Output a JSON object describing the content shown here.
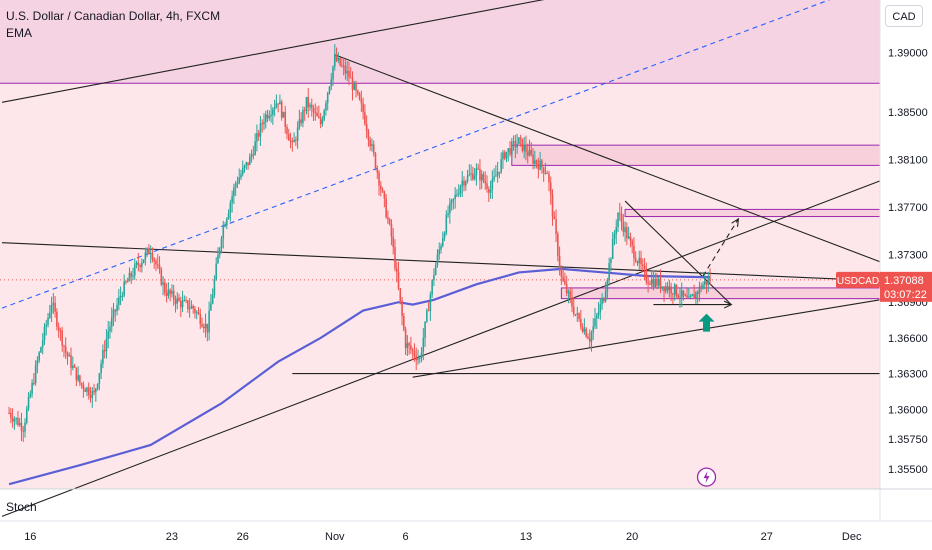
{
  "header": {
    "symbol_title": "U.S. Dollar / Canadian Dollar, 4h, FXCM",
    "indicator": "EMA"
  },
  "currency_button": "CAD",
  "lower_pane_label": "Stoch",
  "colors": {
    "bull": "#26a69a",
    "bear": "#ef5350",
    "ema": "#5b5fd6",
    "zone_fill": "#f3c6d6",
    "zone_border": "#9c27b0",
    "price_tag": "#ef5350",
    "channel_line": "#444444",
    "dashed_midline": "#2962ff",
    "arrow_up": "#089981"
  },
  "price_tag": {
    "symbol": "USDCAD",
    "price": "1.37088",
    "countdown": "03:07:22"
  },
  "chart_data": {
    "type": "candlestick",
    "title": "U.S. Dollar / Canadian Dollar, 4h, FXCM",
    "y_axis": {
      "min": 1.3533,
      "max": 1.3944,
      "ticks": [
        "1.39000",
        "1.38500",
        "1.38100",
        "1.37700",
        "1.37300",
        "1.36900",
        "1.36600",
        "1.36300",
        "1.36000",
        "1.35750",
        "1.35500"
      ],
      "tick_values": [
        1.39,
        1.385,
        1.381,
        1.377,
        1.373,
        1.369,
        1.366,
        1.363,
        1.36,
        1.3575,
        1.355
      ]
    },
    "x_axis": {
      "ticks": [
        "16",
        "23",
        "26",
        "Nov",
        "6",
        "13",
        "20",
        "27",
        "Dec"
      ],
      "tick_index": [
        3,
        23,
        33,
        46,
        56,
        73,
        88,
        107,
        119
      ]
    },
    "candle_width_index": 0.28,
    "path_points": [
      [
        0,
        1.3597
      ],
      [
        2,
        1.3585
      ],
      [
        4,
        1.364
      ],
      [
        6,
        1.369
      ],
      [
        8,
        1.3648
      ],
      [
        10,
        1.3622
      ],
      [
        12,
        1.3612
      ],
      [
        14,
        1.3666
      ],
      [
        16,
        1.37
      ],
      [
        18,
        1.372
      ],
      [
        20,
        1.3735
      ],
      [
        22,
        1.37
      ],
      [
        24,
        1.369
      ],
      [
        26,
        1.3685
      ],
      [
        28,
        1.3668
      ],
      [
        30,
        1.3748
      ],
      [
        32,
        1.379
      ],
      [
        34,
        1.381
      ],
      [
        36,
        1.3845
      ],
      [
        38,
        1.386
      ],
      [
        40,
        1.382
      ],
      [
        42,
        1.3858
      ],
      [
        44,
        1.384
      ],
      [
        46,
        1.3895
      ],
      [
        48,
        1.388
      ],
      [
        50,
        1.385
      ],
      [
        52,
        1.38
      ],
      [
        54,
        1.3745
      ],
      [
        56,
        1.3655
      ],
      [
        58,
        1.3642
      ],
      [
        60,
        1.3715
      ],
      [
        62,
        1.3765
      ],
      [
        64,
        1.3792
      ],
      [
        66,
        1.38
      ],
      [
        68,
        1.3785
      ],
      [
        70,
        1.3815
      ],
      [
        72,
        1.3825
      ],
      [
        74,
        1.381
      ],
      [
        76,
        1.38
      ],
      [
        78,
        1.371
      ],
      [
        80,
        1.368
      ],
      [
        82,
        1.366
      ],
      [
        84,
        1.3695
      ],
      [
        86,
        1.3765
      ],
      [
        88,
        1.3735
      ],
      [
        90,
        1.371
      ],
      [
        92,
        1.3705
      ],
      [
        94,
        1.37
      ],
      [
        96,
        1.369
      ],
      [
        98,
        1.3705
      ],
      [
        99,
        1.3709
      ]
    ],
    "ema": [
      [
        0,
        1.3537
      ],
      [
        10,
        1.3553
      ],
      [
        20,
        1.357
      ],
      [
        30,
        1.3605
      ],
      [
        38,
        1.364
      ],
      [
        44,
        1.366
      ],
      [
        50,
        1.3683
      ],
      [
        55,
        1.369
      ],
      [
        57,
        1.3688
      ],
      [
        60,
        1.3692
      ],
      [
        66,
        1.3705
      ],
      [
        72,
        1.3715
      ],
      [
        78,
        1.3718
      ],
      [
        84,
        1.3715
      ],
      [
        90,
        1.3712
      ],
      [
        99,
        1.3711
      ]
    ],
    "zones": [
      {
        "x1": 0,
        "x2": 123,
        "y1": 1.3874,
        "y2": 1.3944,
        "style": "band"
      },
      {
        "x1": 71,
        "x2": 123,
        "y1": 1.3805,
        "y2": 1.3822,
        "style": "box"
      },
      {
        "x1": 87,
        "x2": 123,
        "y1": 1.3762,
        "y2": 1.3768,
        "style": "box"
      },
      {
        "x1": 78,
        "x2": 123,
        "y1": 1.3693,
        "y2": 1.3702,
        "style": "box"
      }
    ],
    "background_band": {
      "y1": 1.3533,
      "y2": 1.3944
    },
    "lines": [
      {
        "x1": -1,
        "y1": 1.374,
        "x2": 123,
        "y2": 1.3708,
        "style": "solid"
      },
      {
        "x1": 46,
        "y1": 1.3898,
        "x2": 123,
        "y2": 1.3724,
        "style": "solid"
      },
      {
        "x1": -1,
        "y1": 1.351,
        "x2": 123,
        "y2": 1.3792,
        "style": "solid"
      },
      {
        "x1": -1,
        "y1": 1.3858,
        "x2": 123,
        "y2": 1.3998,
        "style": "solid"
      },
      {
        "x1": -1,
        "y1": 1.3685,
        "x2": 123,
        "y2": 1.396,
        "style": "dashed"
      },
      {
        "x1": 57,
        "y1": 1.3627,
        "x2": 123,
        "y2": 1.3692,
        "style": "solid"
      },
      {
        "x1": 40,
        "y1": 1.363,
        "x2": 123,
        "y2": 1.363,
        "style": "solid"
      },
      {
        "x1": 87,
        "y1": 1.3775,
        "x2": 102,
        "y2": 1.3688,
        "style": "solid"
      },
      {
        "x1": 91,
        "y1": 1.3688,
        "x2": 102,
        "y2": 1.3688,
        "style": "solid",
        "arrow": true
      },
      {
        "x1": 98,
        "y1": 1.3712,
        "x2": 103,
        "y2": 1.376,
        "style": "dashed",
        "arrow": true
      }
    ],
    "up_arrow": {
      "x": 98.5,
      "y": 1.3672
    },
    "lightning_marker": {
      "x": 98.5,
      "y": 1.3543
    },
    "last_price_line": 1.37088
  }
}
